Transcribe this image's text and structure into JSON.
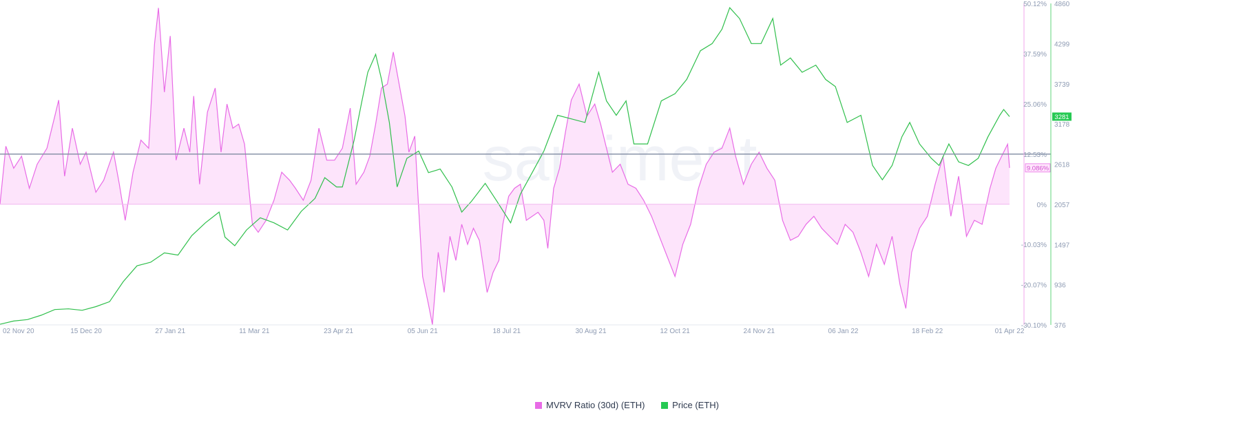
{
  "chart_data": {
    "type": "line",
    "watermark": "santiment",
    "x_ticks": [
      "02 Nov 20",
      "15 Dec 20",
      "27 Jan 21",
      "11 Mar 21",
      "23 Apr 21",
      "05 Jun 21",
      "18 Jul 21",
      "30 Aug 21",
      "12 Oct 21",
      "24 Nov 21",
      "06 Jan 22",
      "18 Feb 22",
      "01 Apr 22"
    ],
    "x_start": "2020-11-01",
    "x_end": "2022-04-01",
    "y_left": {
      "min": -30.1,
      "max": 50.12,
      "ticks": [
        "50.12%",
        "37.59%",
        "25.06%",
        "12.53%",
        "0%",
        "-10.03%",
        "-20.07%",
        "-30.10%"
      ],
      "tick_values": [
        50.12,
        37.59,
        25.06,
        12.53,
        0,
        -10.03,
        -20.07,
        -30.1
      ]
    },
    "y_right": {
      "min": 376,
      "max": 4860,
      "ticks": [
        "4860",
        "4299",
        "3739",
        "3178",
        "2618",
        "2057",
        "1497",
        "936",
        "376"
      ],
      "tick_values": [
        4860,
        4299,
        3739,
        3178,
        2618,
        2057,
        1497,
        936,
        376
      ]
    },
    "reference_line": 12.53,
    "series": [
      {
        "name": "MVRV Ratio (30d) (ETH)",
        "color": "#e86be6",
        "fill": "#fde4fb",
        "axis": "left",
        "last_label": "9.086%",
        "points": [
          [
            "2020-11-01",
            0
          ],
          [
            "2020-11-04",
            14.5
          ],
          [
            "2020-11-08",
            9
          ],
          [
            "2020-11-12",
            12
          ],
          [
            "2020-11-16",
            4
          ],
          [
            "2020-11-20",
            10
          ],
          [
            "2020-11-25",
            14
          ],
          [
            "2020-11-29",
            22
          ],
          [
            "2020-12-01",
            26
          ],
          [
            "2020-12-04",
            7
          ],
          [
            "2020-12-08",
            19
          ],
          [
            "2020-12-12",
            10
          ],
          [
            "2020-12-15",
            13
          ],
          [
            "2020-12-20",
            3
          ],
          [
            "2020-12-24",
            6
          ],
          [
            "2020-12-29",
            13
          ],
          [
            "2021-01-01",
            5
          ],
          [
            "2021-01-04",
            -4
          ],
          [
            "2021-01-08",
            8
          ],
          [
            "2021-01-12",
            16
          ],
          [
            "2021-01-16",
            14
          ],
          [
            "2021-01-19",
            40
          ],
          [
            "2021-01-21",
            49
          ],
          [
            "2021-01-24",
            28
          ],
          [
            "2021-01-27",
            42
          ],
          [
            "2021-01-30",
            11
          ],
          [
            "2021-02-03",
            19
          ],
          [
            "2021-02-06",
            13
          ],
          [
            "2021-02-08",
            27
          ],
          [
            "2021-02-11",
            5
          ],
          [
            "2021-02-15",
            23
          ],
          [
            "2021-02-19",
            29
          ],
          [
            "2021-02-22",
            13
          ],
          [
            "2021-02-25",
            25
          ],
          [
            "2021-02-28",
            19
          ],
          [
            "2021-03-03",
            20
          ],
          [
            "2021-03-06",
            15
          ],
          [
            "2021-03-10",
            -5
          ],
          [
            "2021-03-13",
            -7
          ],
          [
            "2021-03-17",
            -4
          ],
          [
            "2021-03-21",
            1
          ],
          [
            "2021-03-25",
            8
          ],
          [
            "2021-03-29",
            6
          ],
          [
            "2021-04-01",
            4
          ],
          [
            "2021-04-05",
            1
          ],
          [
            "2021-04-09",
            6
          ],
          [
            "2021-04-13",
            19
          ],
          [
            "2021-04-17",
            11
          ],
          [
            "2021-04-21",
            11
          ],
          [
            "2021-04-25",
            14
          ],
          [
            "2021-04-29",
            24
          ],
          [
            "2021-05-02",
            5
          ],
          [
            "2021-05-06",
            8
          ],
          [
            "2021-05-09",
            12
          ],
          [
            "2021-05-12",
            20
          ],
          [
            "2021-05-15",
            29
          ],
          [
            "2021-05-18",
            30
          ],
          [
            "2021-05-21",
            38
          ],
          [
            "2021-05-24",
            30
          ],
          [
            "2021-05-27",
            22
          ],
          [
            "2021-05-29",
            13
          ],
          [
            "2021-06-01",
            17
          ],
          [
            "2021-06-03",
            -1
          ],
          [
            "2021-06-05",
            -18
          ],
          [
            "2021-06-08",
            -25
          ],
          [
            "2021-06-10",
            -30
          ],
          [
            "2021-06-13",
            -12
          ],
          [
            "2021-06-16",
            -22
          ],
          [
            "2021-06-19",
            -8
          ],
          [
            "2021-06-22",
            -14
          ],
          [
            "2021-06-25",
            -5
          ],
          [
            "2021-06-28",
            -10
          ],
          [
            "2021-07-01",
            -6
          ],
          [
            "2021-07-04",
            -9
          ],
          [
            "2021-07-08",
            -22
          ],
          [
            "2021-07-11",
            -17
          ],
          [
            "2021-07-14",
            -14
          ],
          [
            "2021-07-16",
            -5
          ],
          [
            "2021-07-19",
            2
          ],
          [
            "2021-07-22",
            4
          ],
          [
            "2021-07-25",
            5
          ],
          [
            "2021-07-28",
            -4
          ],
          [
            "2021-07-31",
            -3
          ],
          [
            "2021-08-03",
            -2
          ],
          [
            "2021-08-06",
            -4
          ],
          [
            "2021-08-08",
            -11
          ],
          [
            "2021-08-11",
            4
          ],
          [
            "2021-08-14",
            9
          ],
          [
            "2021-08-17",
            18
          ],
          [
            "2021-08-20",
            26
          ],
          [
            "2021-08-24",
            30
          ],
          [
            "2021-08-28",
            22
          ],
          [
            "2021-09-01",
            25
          ],
          [
            "2021-09-04",
            20
          ],
          [
            "2021-09-07",
            14
          ],
          [
            "2021-09-10",
            8
          ],
          [
            "2021-09-14",
            10
          ],
          [
            "2021-09-18",
            5
          ],
          [
            "2021-09-22",
            4
          ],
          [
            "2021-09-26",
            1
          ],
          [
            "2021-09-30",
            -3
          ],
          [
            "2021-10-04",
            -8
          ],
          [
            "2021-10-08",
            -13
          ],
          [
            "2021-10-12",
            -18
          ],
          [
            "2021-10-16",
            -10
          ],
          [
            "2021-10-20",
            -5
          ],
          [
            "2021-10-24",
            4
          ],
          [
            "2021-10-28",
            10
          ],
          [
            "2021-11-01",
            13
          ],
          [
            "2021-11-05",
            14
          ],
          [
            "2021-11-09",
            19
          ],
          [
            "2021-11-12",
            12
          ],
          [
            "2021-11-16",
            5
          ],
          [
            "2021-11-20",
            10
          ],
          [
            "2021-11-24",
            13
          ],
          [
            "2021-11-28",
            9
          ],
          [
            "2021-12-02",
            6
          ],
          [
            "2021-12-06",
            -4
          ],
          [
            "2021-12-10",
            -9
          ],
          [
            "2021-12-14",
            -8
          ],
          [
            "2021-12-18",
            -5
          ],
          [
            "2021-12-22",
            -3
          ],
          [
            "2021-12-26",
            -6
          ],
          [
            "2021-12-30",
            -8
          ],
          [
            "2022-01-03",
            -10
          ],
          [
            "2022-01-07",
            -5
          ],
          [
            "2022-01-11",
            -7
          ],
          [
            "2022-01-15",
            -12
          ],
          [
            "2022-01-19",
            -18
          ],
          [
            "2022-01-23",
            -10
          ],
          [
            "2022-01-27",
            -15
          ],
          [
            "2022-01-31",
            -8
          ],
          [
            "2022-02-04",
            -20
          ],
          [
            "2022-02-07",
            -26
          ],
          [
            "2022-02-10",
            -12
          ],
          [
            "2022-02-14",
            -6
          ],
          [
            "2022-02-18",
            -3
          ],
          [
            "2022-02-22",
            5
          ],
          [
            "2022-02-26",
            12
          ],
          [
            "2022-03-02",
            -3
          ],
          [
            "2022-03-06",
            7
          ],
          [
            "2022-03-10",
            -8
          ],
          [
            "2022-03-14",
            -4
          ],
          [
            "2022-03-18",
            -5
          ],
          [
            "2022-03-22",
            4
          ],
          [
            "2022-03-25",
            9
          ],
          [
            "2022-03-28",
            12
          ],
          [
            "2022-03-31",
            15
          ],
          [
            "2022-04-01",
            9.086
          ]
        ]
      },
      {
        "name": "Price (ETH)",
        "color": "#2fbf4b",
        "axis": "right",
        "last_label": "3281",
        "last_label_bg": "#26c953",
        "points": [
          [
            "2020-11-01",
            385
          ],
          [
            "2020-11-08",
            430
          ],
          [
            "2020-11-15",
            450
          ],
          [
            "2020-11-22",
            510
          ],
          [
            "2020-11-29",
            590
          ],
          [
            "2020-12-06",
            600
          ],
          [
            "2020-12-13",
            580
          ],
          [
            "2020-12-20",
            630
          ],
          [
            "2020-12-27",
            700
          ],
          [
            "2021-01-03",
            980
          ],
          [
            "2021-01-10",
            1200
          ],
          [
            "2021-01-17",
            1250
          ],
          [
            "2021-01-24",
            1380
          ],
          [
            "2021-01-31",
            1350
          ],
          [
            "2021-02-07",
            1620
          ],
          [
            "2021-02-14",
            1800
          ],
          [
            "2021-02-21",
            1950
          ],
          [
            "2021-02-24",
            1600
          ],
          [
            "2021-03-01",
            1480
          ],
          [
            "2021-03-07",
            1700
          ],
          [
            "2021-03-14",
            1870
          ],
          [
            "2021-03-21",
            1800
          ],
          [
            "2021-03-28",
            1700
          ],
          [
            "2021-04-04",
            1960
          ],
          [
            "2021-04-11",
            2140
          ],
          [
            "2021-04-16",
            2430
          ],
          [
            "2021-04-22",
            2300
          ],
          [
            "2021-04-25",
            2300
          ],
          [
            "2021-05-01",
            2950
          ],
          [
            "2021-05-05",
            3500
          ],
          [
            "2021-05-08",
            3900
          ],
          [
            "2021-05-12",
            4150
          ],
          [
            "2021-05-15",
            3800
          ],
          [
            "2021-05-19",
            3200
          ],
          [
            "2021-05-23",
            2300
          ],
          [
            "2021-05-28",
            2700
          ],
          [
            "2021-06-03",
            2800
          ],
          [
            "2021-06-08",
            2500
          ],
          [
            "2021-06-14",
            2550
          ],
          [
            "2021-06-20",
            2300
          ],
          [
            "2021-06-25",
            1950
          ],
          [
            "2021-06-30",
            2100
          ],
          [
            "2021-07-07",
            2350
          ],
          [
            "2021-07-13",
            2100
          ],
          [
            "2021-07-20",
            1800
          ],
          [
            "2021-07-25",
            2200
          ],
          [
            "2021-07-31",
            2500
          ],
          [
            "2021-08-06",
            2800
          ],
          [
            "2021-08-13",
            3300
          ],
          [
            "2021-08-20",
            3250
          ],
          [
            "2021-08-27",
            3200
          ],
          [
            "2021-09-03",
            3900
          ],
          [
            "2021-09-07",
            3500
          ],
          [
            "2021-09-12",
            3300
          ],
          [
            "2021-09-17",
            3500
          ],
          [
            "2021-09-21",
            2900
          ],
          [
            "2021-09-28",
            2900
          ],
          [
            "2021-10-05",
            3500
          ],
          [
            "2021-10-12",
            3600
          ],
          [
            "2021-10-18",
            3800
          ],
          [
            "2021-10-25",
            4200
          ],
          [
            "2021-10-31",
            4300
          ],
          [
            "2021-11-05",
            4500
          ],
          [
            "2021-11-09",
            4800
          ],
          [
            "2021-11-14",
            4650
          ],
          [
            "2021-11-20",
            4300
          ],
          [
            "2021-11-25",
            4300
          ],
          [
            "2021-12-01",
            4650
          ],
          [
            "2021-12-05",
            4000
          ],
          [
            "2021-12-10",
            4100
          ],
          [
            "2021-12-16",
            3900
          ],
          [
            "2021-12-23",
            4000
          ],
          [
            "2021-12-28",
            3800
          ],
          [
            "2022-01-02",
            3700
          ],
          [
            "2022-01-08",
            3200
          ],
          [
            "2022-01-15",
            3300
          ],
          [
            "2022-01-21",
            2600
          ],
          [
            "2022-01-26",
            2400
          ],
          [
            "2022-01-31",
            2600
          ],
          [
            "2022-02-05",
            3000
          ],
          [
            "2022-02-09",
            3200
          ],
          [
            "2022-02-14",
            2900
          ],
          [
            "2022-02-20",
            2700
          ],
          [
            "2022-02-24",
            2600
          ],
          [
            "2022-03-01",
            2900
          ],
          [
            "2022-03-06",
            2650
          ],
          [
            "2022-03-11",
            2600
          ],
          [
            "2022-03-16",
            2700
          ],
          [
            "2022-03-21",
            3000
          ],
          [
            "2022-03-27",
            3300
          ],
          [
            "2022-03-29",
            3380
          ],
          [
            "2022-04-01",
            3281
          ]
        ]
      }
    ],
    "legend": [
      {
        "label": "MVRV Ratio (30d) (ETH)",
        "color": "#e86be6"
      },
      {
        "label": "Price (ETH)",
        "color": "#26c953"
      }
    ],
    "legend_position": "bottom-center"
  }
}
